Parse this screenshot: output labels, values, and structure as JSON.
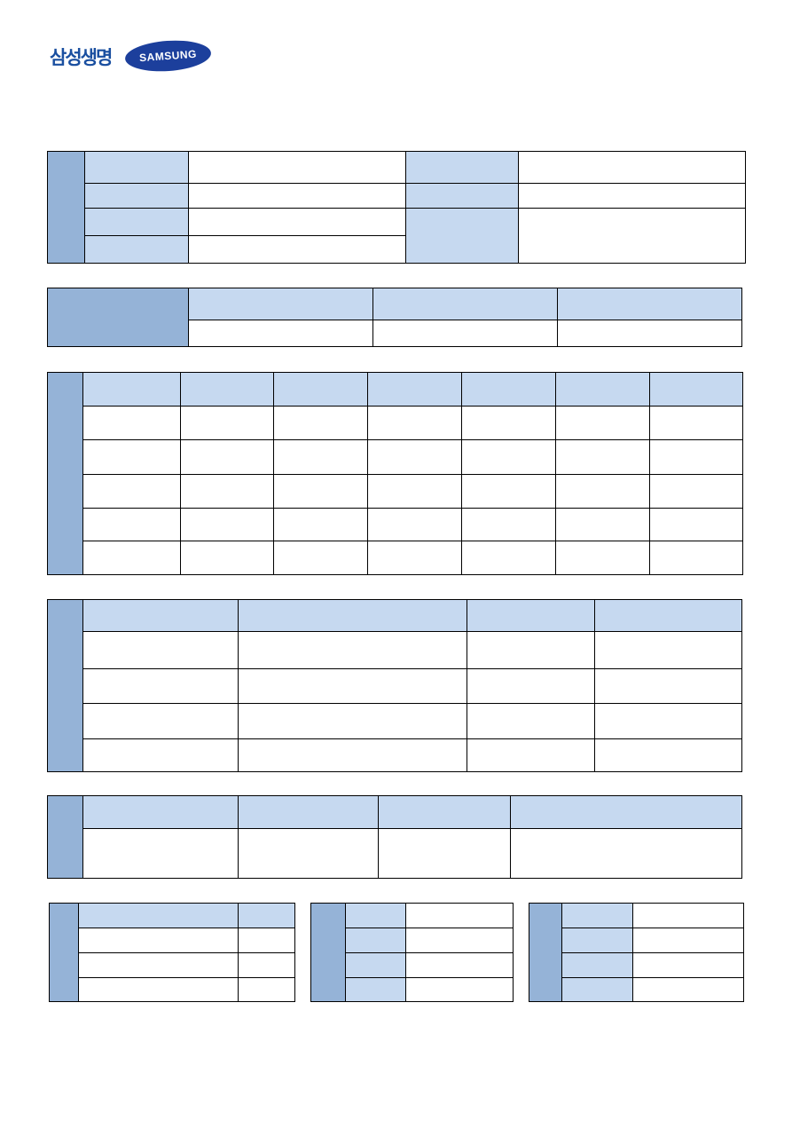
{
  "header": {
    "company_logo_text": "삼성생명",
    "brand_logo_text": "SAMSUNG"
  },
  "colors": {
    "side_header": "#95b3d7",
    "label_cell": "#c6d9f0",
    "border": "#000000",
    "logo_blue": "#1c3f9c"
  }
}
